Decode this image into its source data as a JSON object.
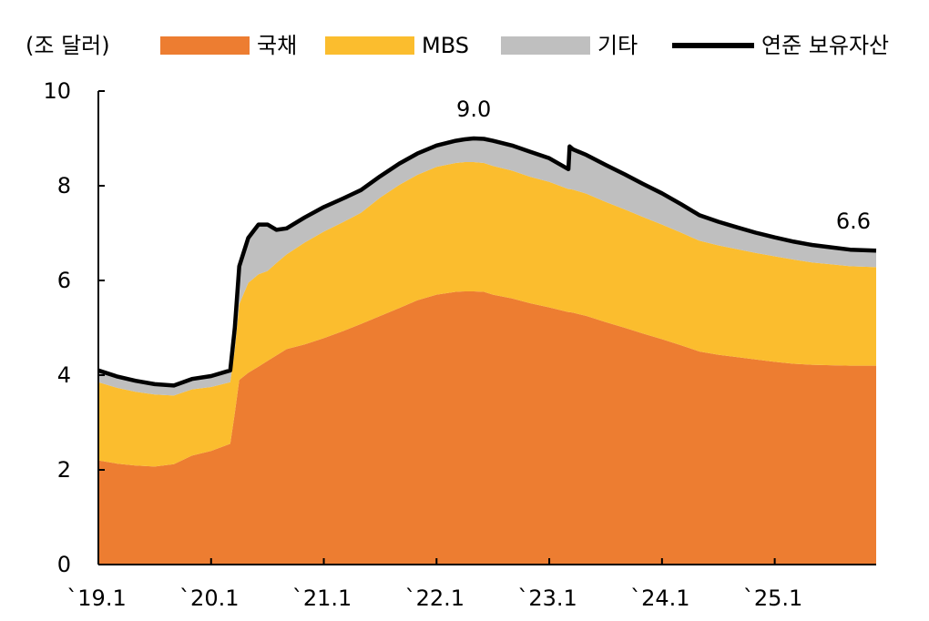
{
  "chart_data": {
    "type": "area",
    "unit_label": "(조 달러)",
    "title": "",
    "xlabel": "",
    "ylabel": "",
    "ylim": [
      0,
      10
    ],
    "yticks": [
      0,
      2,
      4,
      6,
      8,
      10
    ],
    "x_start": 2019.0,
    "x_end": 2025.9,
    "x_ticks": [
      {
        "x": 2019.0,
        "label": "`19.1"
      },
      {
        "x": 2020.0,
        "label": "`20.1"
      },
      {
        "x": 2021.0,
        "label": "`21.1"
      },
      {
        "x": 2022.0,
        "label": "`22.1"
      },
      {
        "x": 2023.0,
        "label": "`23.1"
      },
      {
        "x": 2024.0,
        "label": "`24.1"
      },
      {
        "x": 2025.0,
        "label": "`25.1"
      }
    ],
    "x": [
      2019.0,
      2019.17,
      2019.33,
      2019.5,
      2019.67,
      2019.83,
      2020.0,
      2020.17,
      2020.21,
      2020.25,
      2020.33,
      2020.42,
      2020.5,
      2020.58,
      2020.67,
      2020.83,
      2021.0,
      2021.17,
      2021.33,
      2021.5,
      2021.67,
      2021.83,
      2022.0,
      2022.17,
      2022.25,
      2022.33,
      2022.42,
      2022.5,
      2022.67,
      2022.83,
      2023.0,
      2023.17,
      2023.18,
      2023.21,
      2023.33,
      2023.5,
      2023.67,
      2023.83,
      2024.0,
      2024.17,
      2024.33,
      2024.5,
      2024.67,
      2024.83,
      2025.0,
      2025.17,
      2025.33,
      2025.5,
      2025.67,
      2025.9
    ],
    "series": [
      {
        "name": "국채",
        "color": "#ED7D31",
        "values": [
          2.2,
          2.13,
          2.09,
          2.07,
          2.12,
          2.3,
          2.4,
          2.55,
          3.2,
          3.9,
          4.05,
          4.18,
          4.3,
          4.42,
          4.55,
          4.65,
          4.78,
          4.93,
          5.08,
          5.25,
          5.42,
          5.58,
          5.7,
          5.76,
          5.77,
          5.77,
          5.76,
          5.7,
          5.62,
          5.52,
          5.43,
          5.33,
          5.33,
          5.32,
          5.25,
          5.12,
          5.0,
          4.88,
          4.76,
          4.63,
          4.5,
          4.43,
          4.38,
          4.33,
          4.28,
          4.24,
          4.22,
          4.21,
          4.2,
          4.2
        ]
      },
      {
        "name": "MBS",
        "color": "#FBBD2E",
        "values": [
          1.65,
          1.6,
          1.56,
          1.52,
          1.45,
          1.4,
          1.35,
          1.3,
          1.35,
          1.6,
          1.9,
          1.95,
          1.9,
          1.95,
          2.0,
          2.15,
          2.25,
          2.3,
          2.35,
          2.5,
          2.6,
          2.65,
          2.7,
          2.72,
          2.73,
          2.73,
          2.72,
          2.72,
          2.7,
          2.67,
          2.65,
          2.6,
          2.6,
          2.6,
          2.58,
          2.54,
          2.5,
          2.46,
          2.42,
          2.38,
          2.34,
          2.31,
          2.28,
          2.25,
          2.23,
          2.2,
          2.16,
          2.13,
          2.1,
          2.08
        ]
      },
      {
        "name": "기타",
        "color": "#BFBFBF",
        "values": [
          0.25,
          0.24,
          0.23,
          0.22,
          0.21,
          0.22,
          0.23,
          0.25,
          0.45,
          0.8,
          0.95,
          1.05,
          0.98,
          0.7,
          0.55,
          0.53,
          0.52,
          0.5,
          0.48,
          0.45,
          0.45,
          0.45,
          0.45,
          0.47,
          0.48,
          0.5,
          0.51,
          0.53,
          0.53,
          0.53,
          0.5,
          0.42,
          0.9,
          0.85,
          0.82,
          0.78,
          0.74,
          0.7,
          0.66,
          0.6,
          0.54,
          0.5,
          0.46,
          0.43,
          0.4,
          0.38,
          0.37,
          0.36,
          0.35,
          0.35
        ]
      }
    ],
    "line": {
      "name": "연준 보유자산",
      "color": "#000000",
      "values": [
        4.1,
        3.97,
        3.88,
        3.81,
        3.78,
        3.92,
        3.98,
        4.1,
        5.0,
        6.3,
        6.9,
        7.18,
        7.18,
        7.07,
        7.1,
        7.33,
        7.55,
        7.73,
        7.91,
        8.2,
        8.47,
        8.68,
        8.85,
        8.95,
        8.98,
        9.0,
        8.99,
        8.95,
        8.85,
        8.72,
        8.58,
        8.35,
        8.83,
        8.77,
        8.65,
        8.44,
        8.24,
        8.04,
        7.84,
        7.61,
        7.38,
        7.24,
        7.12,
        7.01,
        6.91,
        6.82,
        6.75,
        6.7,
        6.65,
        6.63
      ]
    },
    "annotations": [
      {
        "text": "9.0",
        "x": 2022.33,
        "y": 9.0
      },
      {
        "text": "6.6",
        "x": 2025.9,
        "y": 6.63
      }
    ],
    "legend_position": "top"
  }
}
